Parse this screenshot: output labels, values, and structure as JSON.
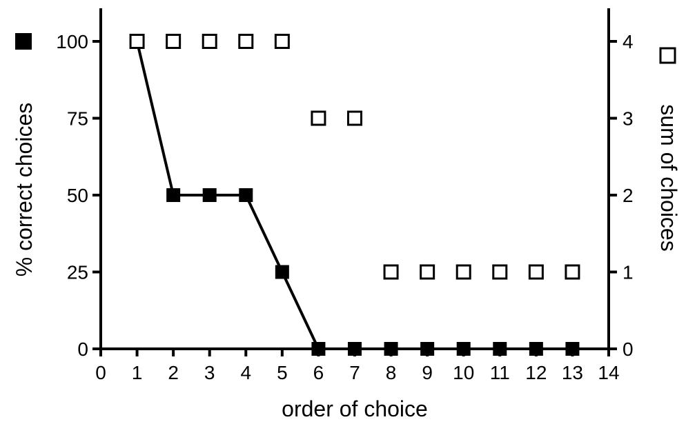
{
  "chart_data": {
    "type": "line",
    "xlabel": "order of choice",
    "ylabel_left": "% correct choices",
    "ylabel_right": "sum of choices",
    "xlim": [
      0,
      14
    ],
    "ylim_left": [
      0,
      100
    ],
    "ylim_right": [
      0,
      4
    ],
    "x_ticks": [
      "0",
      "1",
      "2",
      "3",
      "4",
      "5",
      "6",
      "7",
      "8",
      "9",
      "10",
      "11",
      "12",
      "13",
      "14"
    ],
    "y_left_ticks": [
      "0",
      "25",
      "50",
      "75",
      "100"
    ],
    "y_right_ticks": [
      "0",
      "1",
      "2",
      "3",
      "4"
    ],
    "grid": false,
    "colors": {
      "line": "#000000",
      "filled_marker": "#000000",
      "open_marker_stroke": "#000000",
      "open_marker_fill": "#ffffff"
    },
    "series": [
      {
        "marker": "filled-square",
        "axis": "left",
        "connected": true,
        "x": [
          1,
          2,
          3,
          4,
          5,
          6,
          7,
          8,
          9,
          10,
          11,
          12,
          13
        ],
        "values": [
          100,
          50,
          50,
          50,
          25,
          0,
          0,
          0,
          0,
          0,
          0,
          0,
          0
        ]
      },
      {
        "marker": "open-square",
        "axis": "right",
        "connected": false,
        "x": [
          1,
          2,
          3,
          4,
          5,
          6,
          7,
          8,
          9,
          10,
          11,
          12,
          13
        ],
        "values": [
          4,
          4,
          4,
          4,
          4,
          3,
          3,
          1,
          1,
          1,
          1,
          1,
          1
        ]
      }
    ]
  }
}
